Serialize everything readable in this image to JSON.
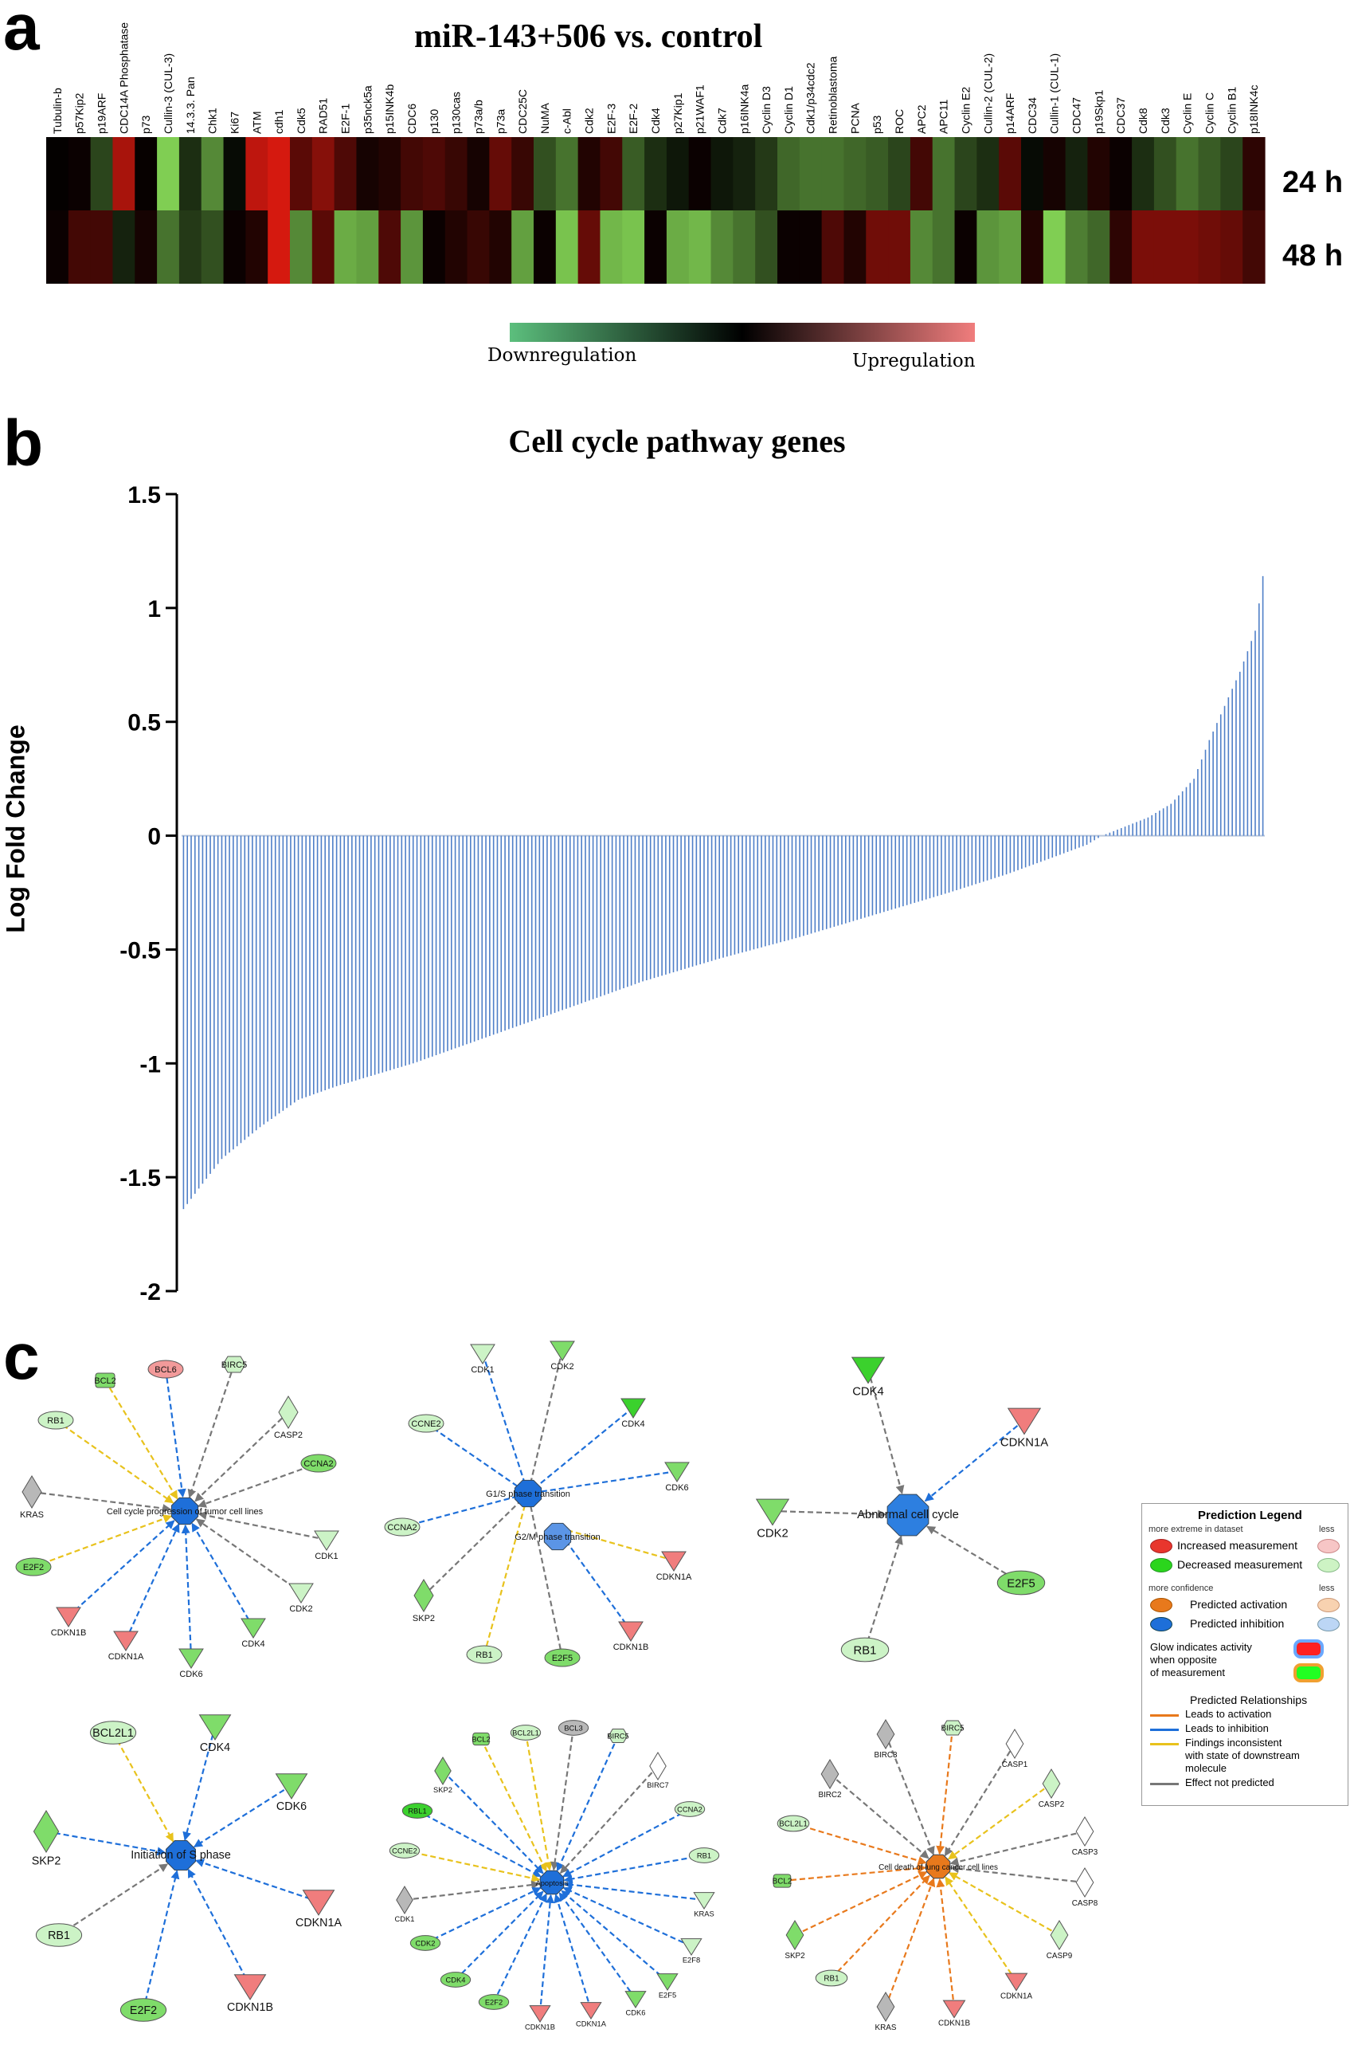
{
  "panel_letters": {
    "a": "a",
    "b": "b",
    "c": "c"
  },
  "chart_data": [
    {
      "type": "heatmap",
      "title": "miR-143+506 vs. control",
      "rows": [
        "24 h",
        "48 h"
      ],
      "columns": [
        "Tubulin-b",
        "p57Kip2",
        "p19ARF",
        "CDC14A Phosphatase",
        "p73",
        "Cullin-3 (CUL-3)",
        "14.3.3. Pan",
        "Chk1",
        "Ki67",
        "ATM",
        "cdh1",
        "Cdk5",
        "RAD51",
        "E2F-1",
        "p35nck5a",
        "p15INK4b",
        "CDC6",
        "p130",
        "p130cas",
        "p73a/b",
        "p73a",
        "CDC25C",
        "NuMA",
        "c-Abl",
        "Cdk2",
        "E2F-3",
        "E2F-2",
        "Cdk4",
        "p27Kip1",
        "p21WAF1",
        "Cdk7",
        "p16INK4a",
        "Cyclin D3",
        "Cyclin D1",
        "Cdk1/p34cdc2",
        "Retinoblastoma",
        "PCNA",
        "p53",
        "ROC",
        "APC2",
        "APC11",
        "Cyclin E2",
        "Cullin-2 (CUL-2)",
        "p14ARF",
        "CDC34",
        "Cullin-1 (CUL-1)",
        "CDC47",
        "p19Skp1",
        "CDC37",
        "Cdk8",
        "Cdk3",
        "Cyclin E",
        "Cyclin C",
        "Cyclin B1",
        "p18INK4c"
      ],
      "values_24h": [
        0.02,
        0.05,
        -0.3,
        0.75,
        0.03,
        -0.9,
        -0.2,
        -0.6,
        -0.05,
        0.85,
        0.95,
        0.4,
        0.6,
        0.35,
        0.1,
        0.15,
        0.3,
        0.35,
        0.25,
        0.1,
        0.45,
        0.25,
        -0.35,
        -0.5,
        0.15,
        0.3,
        -0.4,
        -0.2,
        -0.1,
        0.05,
        -0.1,
        -0.15,
        -0.25,
        -0.45,
        -0.5,
        -0.5,
        -0.45,
        -0.4,
        -0.3,
        0.3,
        -0.5,
        -0.3,
        -0.2,
        0.4,
        -0.05,
        0.1,
        -0.15,
        0.15,
        0.05,
        -0.2,
        -0.35,
        -0.5,
        -0.4,
        -0.3,
        0.2
      ],
      "values_48h": [
        0.05,
        0.3,
        0.3,
        -0.15,
        0.1,
        -0.5,
        -0.25,
        -0.35,
        0.05,
        0.15,
        0.95,
        -0.6,
        0.4,
        -0.75,
        -0.7,
        0.35,
        -0.65,
        0.05,
        0.15,
        0.25,
        0.15,
        -0.7,
        0.05,
        -0.85,
        0.45,
        -0.8,
        -0.85,
        0.05,
        -0.75,
        -0.8,
        -0.6,
        -0.5,
        -0.35,
        0.05,
        0.05,
        0.35,
        0.15,
        0.5,
        0.5,
        -0.6,
        -0.5,
        0.05,
        -0.65,
        -0.7,
        0.15,
        -0.9,
        -0.55,
        -0.45,
        0.2,
        0.55,
        0.55,
        0.55,
        0.5,
        0.45,
        0.3
      ],
      "colorbar": {
        "low_label": "Downregulation",
        "high_label": "Upregulation",
        "low_color": "#5cbf7d",
        "mid_color": "#000000",
        "high_color": "#f07d7d"
      }
    },
    {
      "type": "bar",
      "title": "Cell cycle pathway genes",
      "ylabel": "Log Fold Change",
      "ylim": [
        -2,
        1.5
      ],
      "yticks": [
        "1.5",
        "1",
        "0.5",
        "0",
        "-0.5",
        "-1",
        "-1.5",
        "-2"
      ],
      "ytick_values": [
        1.5,
        1,
        0.5,
        0,
        -0.5,
        -1,
        -1.5,
        -2
      ],
      "bar_color": "#4f7fc8",
      "n_bars": 283,
      "sorted": "ascending",
      "min": -1.64,
      "max": 1.14,
      "key_points": [
        [
          0,
          -1.64
        ],
        [
          4,
          -1.55
        ],
        [
          10,
          -1.42
        ],
        [
          20,
          -1.28
        ],
        [
          30,
          -1.16
        ],
        [
          40,
          -1.1
        ],
        [
          60,
          -1.0
        ],
        [
          80,
          -0.88
        ],
        [
          100,
          -0.76
        ],
        [
          120,
          -0.64
        ],
        [
          140,
          -0.54
        ],
        [
          160,
          -0.45
        ],
        [
          180,
          -0.35
        ],
        [
          200,
          -0.25
        ],
        [
          215,
          -0.17
        ],
        [
          228,
          -0.09
        ],
        [
          236,
          -0.04
        ],
        [
          240,
          0.0
        ],
        [
          246,
          0.04
        ],
        [
          252,
          0.08
        ],
        [
          258,
          0.14
        ],
        [
          264,
          0.25
        ],
        [
          268,
          0.42
        ],
        [
          272,
          0.57
        ],
        [
          276,
          0.72
        ],
        [
          280,
          0.9
        ],
        [
          282,
          1.14
        ]
      ]
    }
  ],
  "networks": {
    "n1": {
      "center": "Cell cycle progression of tumor cell lines",
      "nodes": [
        "BCL6",
        "BIRC5",
        "BCL2",
        "CASP2",
        "RB1",
        "CCNA2",
        "KRAS",
        "CDK1",
        "E2F2",
        "CDK2",
        "CDKN1B",
        "CDK4",
        "CDKN1A",
        "CDK6"
      ]
    },
    "n2": {
      "center1": "G1/S phase transition",
      "center2": "G2/M phase transition",
      "nodes": [
        "CDK1",
        "CDK2",
        "CDK4",
        "CCNE2",
        "CDK6",
        "CCNA2",
        "CDKN1A",
        "SKP2",
        "CDKN1B",
        "RB1",
        "E2F5"
      ]
    },
    "n3": {
      "center": "Abnormal cell cycle",
      "nodes": [
        "CDK4",
        "CDKN1A",
        "CDK2",
        "E2F5",
        "RB1"
      ]
    },
    "n4": {
      "center": "Initiation of S phase",
      "nodes": [
        "BCL2L1",
        "CDK4",
        "CDK6",
        "SKP2",
        "CDKN1A",
        "RB1",
        "CDKN1B",
        "E2F2"
      ]
    },
    "n5": {
      "center": "Apoptosis",
      "nodes": [
        "BCL2",
        "BCL2L1",
        "BCL3",
        "BIRC5",
        "SKP2",
        "BIRC7",
        "RBL1",
        "CCNA2",
        "CCNE2",
        "RB1",
        "CDK1",
        "KRAS",
        "CDK2",
        "E2F8",
        "CDK4",
        "E2F5",
        "E2F2",
        "CDKN1B",
        "CDKN1A",
        "CDK6"
      ]
    },
    "n6": {
      "center": "Cell death of lung cancer cell lines",
      "nodes": [
        "BIRC3",
        "BIRC5",
        "CASP1",
        "BIRC2",
        "CASP2",
        "BCL2L1",
        "CASP3",
        "BCL2",
        "CASP8",
        "SKP2",
        "CASP9",
        "RB1",
        "CDKN1A",
        "KRAS",
        "CDKN1B"
      ]
    }
  },
  "legend": {
    "title": "Prediction Legend",
    "more_extreme": "more extreme in dataset",
    "less": "less",
    "increased": "Increased measurement",
    "decreased": "Decreased measurement",
    "more_confidence": "more confidence",
    "pred_activation": "Predicted activation",
    "pred_inhibition": "Predicted inhibition",
    "glow1": "Glow indicates activity",
    "glow2": "when opposite",
    "glow3": "of measurement",
    "relationships": "Predicted Relationships",
    "leads_activation": "Leads to activation",
    "leads_inhibition": "Leads to inhibition",
    "findings1": "Findings inconsistent",
    "findings2": "with state of downstream",
    "findings3": "molecule",
    "not_predicted": "Effect not predicted"
  },
  "colors": {
    "up": "#f07d7d",
    "down": "#7fdc6a",
    "down_strong": "#3bd12d",
    "inhibition": "#1e6fd9",
    "activation": "#e8791c",
    "inconsistent": "#e8c21c",
    "grey": "#777777"
  }
}
